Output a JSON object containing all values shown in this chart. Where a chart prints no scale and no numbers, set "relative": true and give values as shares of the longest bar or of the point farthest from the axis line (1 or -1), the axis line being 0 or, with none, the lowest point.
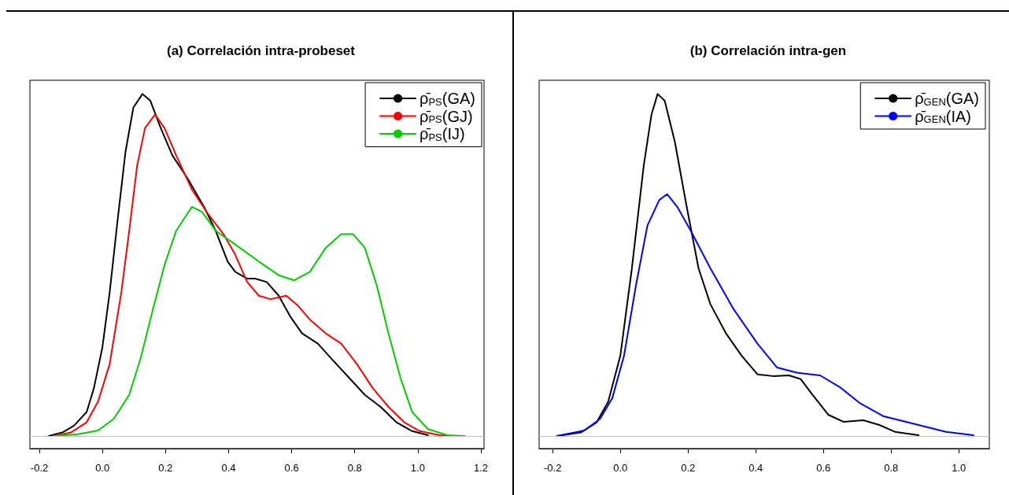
{
  "chart_data": [
    {
      "type": "line",
      "title": "(a) Correlación intra-probeset",
      "relative": true,
      "xlim": [
        -0.23,
        1.21
      ],
      "xticks": [
        {
          "value": -0.2,
          "label": "-0.2"
        },
        {
          "value": 0,
          "label": "0.0"
        },
        {
          "value": 0.2,
          "label": "0.2"
        },
        {
          "value": 0.4,
          "label": "0.4"
        },
        {
          "value": 0.6,
          "label": "0.6"
        },
        {
          "value": 0.8,
          "label": "0.8"
        },
        {
          "value": 1,
          "label": "1.0"
        },
        {
          "value": 1.2,
          "label": "1.2"
        }
      ],
      "grid": false,
      "legend": "top right",
      "ref_lines": [
        {
          "axis": "y",
          "value": 0,
          "color": "#bebebe"
        }
      ],
      "series": [
        {
          "name": "ρ̄$_{PS}$(GA)",
          "color": "#000000",
          "x": [
            -0.17,
            -0.127,
            -0.09,
            -0.05,
            -0.027,
            0,
            0.023,
            0.048,
            0.073,
            0.098,
            0.127,
            0.152,
            0.185,
            0.222,
            0.272,
            0.322,
            0.359,
            0.397,
            0.421,
            0.459,
            0.484,
            0.521,
            0.559,
            0.595,
            0.633,
            0.683,
            0.732,
            0.782,
            0.832,
            0.882,
            0.932,
            0.982,
            1.032
          ],
          "values": [
            0,
            0.01,
            0.03,
            0.07,
            0.14,
            0.26,
            0.42,
            0.63,
            0.83,
            0.96,
            1,
            0.98,
            0.9,
            0.82,
            0.75,
            0.67,
            0.6,
            0.51,
            0.48,
            0.46,
            0.46,
            0.45,
            0.41,
            0.35,
            0.3,
            0.27,
            0.22,
            0.17,
            0.12,
            0.085,
            0.04,
            0.014,
            0.002
          ]
        },
        {
          "name": "ρ̄$_{PS}$(GJ)",
          "color": "#ff0000",
          "x": [
            -0.15,
            -0.1,
            -0.05,
            -0.014,
            0.023,
            0.06,
            0.085,
            0.11,
            0.135,
            0.167,
            0.197,
            0.234,
            0.284,
            0.334,
            0.384,
            0.421,
            0.459,
            0.496,
            0.533,
            0.583,
            0.621,
            0.658,
            0.708,
            0.757,
            0.807,
            0.857,
            0.907,
            0.957,
            1.006,
            1.069,
            1.106
          ],
          "values": [
            0,
            0.01,
            0.04,
            0.1,
            0.21,
            0.42,
            0.6,
            0.79,
            0.9,
            0.94,
            0.9,
            0.82,
            0.72,
            0.65,
            0.59,
            0.53,
            0.45,
            0.41,
            0.4,
            0.41,
            0.38,
            0.34,
            0.3,
            0.27,
            0.21,
            0.14,
            0.085,
            0.04,
            0.014,
            0.002,
            0
          ]
        },
        {
          "name": "ρ̄$_{PS}$(IJ)",
          "color": "#00cc00",
          "x": [
            -0.15,
            -0.077,
            -0.014,
            0.036,
            0.085,
            0.122,
            0.16,
            0.197,
            0.234,
            0.284,
            0.316,
            0.359,
            0.421,
            0.496,
            0.559,
            0.608,
            0.658,
            0.708,
            0.757,
            0.795,
            0.832,
            0.87,
            0.907,
            0.945,
            0.982,
            1.032,
            1.094,
            1.149
          ],
          "values": [
            0,
            0.005,
            0.016,
            0.05,
            0.12,
            0.23,
            0.37,
            0.5,
            0.6,
            0.67,
            0.655,
            0.6,
            0.56,
            0.51,
            0.47,
            0.455,
            0.48,
            0.55,
            0.59,
            0.59,
            0.55,
            0.44,
            0.3,
            0.17,
            0.07,
            0.02,
            0.002,
            0
          ]
        }
      ]
    },
    {
      "type": "line",
      "title": "(b) Correlación intra-gen",
      "relative": true,
      "xlim": [
        -0.24,
        1.09
      ],
      "xticks": [
        {
          "value": -0.2,
          "label": "-0.2"
        },
        {
          "value": 0,
          "label": "0.0"
        },
        {
          "value": 0.2,
          "label": "0.2"
        },
        {
          "value": 0.4,
          "label": "0.4"
        },
        {
          "value": 0.6,
          "label": "0.6"
        },
        {
          "value": 0.8,
          "label": "0.8"
        },
        {
          "value": 1,
          "label": "1.0"
        }
      ],
      "grid": false,
      "legend": "top right",
      "ref_lines": [
        {
          "axis": "y",
          "value": 0,
          "color": "#bebebe"
        }
      ],
      "series": [
        {
          "name": "ρ̄$_{GEN}$(GA)",
          "color": "#000000",
          "x": [
            -0.187,
            -0.117,
            -0.07,
            -0.036,
            0,
            0.034,
            0.069,
            0.092,
            0.11,
            0.131,
            0.161,
            0.196,
            0.231,
            0.266,
            0.312,
            0.358,
            0.405,
            0.451,
            0.498,
            0.533,
            0.568,
            0.614,
            0.66,
            0.718,
            0.765,
            0.811,
            0.881
          ],
          "values": [
            0,
            0.01,
            0.04,
            0.1,
            0.235,
            0.49,
            0.79,
            0.94,
            1,
            0.98,
            0.86,
            0.67,
            0.49,
            0.385,
            0.3,
            0.235,
            0.18,
            0.175,
            0.177,
            0.166,
            0.12,
            0.062,
            0.041,
            0.046,
            0.032,
            0.012,
            0.002
          ]
        },
        {
          "name": "ρ̄$_{GEN}$(IA)",
          "color": "#0000ff",
          "x": [
            -0.187,
            -0.106,
            -0.06,
            -0.024,
            0.011,
            0.046,
            0.08,
            0.115,
            0.138,
            0.168,
            0.208,
            0.266,
            0.335,
            0.405,
            0.463,
            0.521,
            0.59,
            0.648,
            0.706,
            0.776,
            0.869,
            0.962,
            1.043
          ],
          "values": [
            0,
            0.016,
            0.05,
            0.11,
            0.235,
            0.44,
            0.615,
            0.69,
            0.707,
            0.67,
            0.6,
            0.49,
            0.37,
            0.27,
            0.2,
            0.185,
            0.177,
            0.143,
            0.097,
            0.058,
            0.035,
            0.012,
            0.002
          ]
        }
      ]
    }
  ]
}
